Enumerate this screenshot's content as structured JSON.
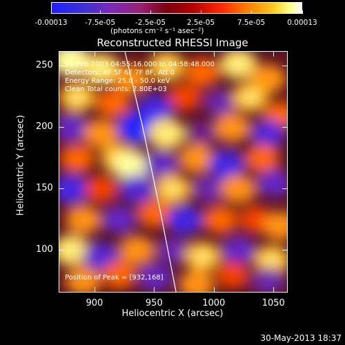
{
  "colorbar": {
    "ticks": [
      "-0.00013",
      "-7.5e-05",
      "-2.5e-05",
      "2.5e-05",
      "7.5e-05",
      "0.00013"
    ],
    "unit": "(photons cm⁻² s⁻¹ asec⁻²)",
    "range": [
      -0.00013,
      0.00013
    ]
  },
  "title": "Reconstructed RHESSI Image",
  "info": {
    "time": "21-Feb-2003 04:55:16.000 to 04:58:48.000",
    "detectors": "Detectors: 4F 5F 6F 7F 8F, Att 0",
    "energy": "Energy Range: 25.0 - 50.0 keV",
    "method": "Clean     Total counts: 2.80E+03",
    "peak": "Position of Peak = [932,168]"
  },
  "axes": {
    "xlabel": "Heliocentric X (arcsec)",
    "ylabel": "Heliocentric Y (arcsec)",
    "xticks": [
      "900",
      "950",
      "1000",
      "1050"
    ],
    "yticks": [
      "250",
      "200",
      "150",
      "100"
    ],
    "xlim": [
      870,
      1062
    ],
    "ylim": [
      65,
      262
    ]
  },
  "timestamp": "30-May-2013 18:37",
  "image": {
    "cmap": "red-temperature",
    "blobs": [
      [
        880,
        255,
        1.0
      ],
      [
        905,
        248,
        0.9
      ],
      [
        930,
        240,
        0.7
      ],
      [
        960,
        250,
        0.8
      ],
      [
        990,
        245,
        0.6
      ],
      [
        1020,
        252,
        0.9
      ],
      [
        1045,
        240,
        0.7
      ],
      [
        885,
        225,
        0.8
      ],
      [
        915,
        220,
        0.6
      ],
      [
        950,
        215,
        -0.8
      ],
      [
        975,
        225,
        0.5
      ],
      [
        1005,
        220,
        -0.5
      ],
      [
        1030,
        225,
        0.8
      ],
      [
        1055,
        210,
        0.6
      ],
      [
        880,
        200,
        -0.6
      ],
      [
        905,
        195,
        0.7
      ],
      [
        935,
        200,
        -1.0
      ],
      [
        960,
        195,
        0.9
      ],
      [
        990,
        195,
        -0.4
      ],
      [
        1015,
        200,
        0.7
      ],
      [
        1045,
        195,
        -0.7
      ],
      [
        885,
        175,
        0.6
      ],
      [
        920,
        175,
        0.8
      ],
      [
        932,
        168,
        1.0
      ],
      [
        955,
        170,
        -0.6
      ],
      [
        985,
        175,
        0.7
      ],
      [
        1010,
        170,
        -0.8
      ],
      [
        1040,
        175,
        0.6
      ],
      [
        880,
        150,
        -0.8
      ],
      [
        905,
        150,
        0.5
      ],
      [
        935,
        150,
        -0.7
      ],
      [
        965,
        150,
        0.8
      ],
      [
        995,
        150,
        -0.5
      ],
      [
        1020,
        150,
        0.7
      ],
      [
        1050,
        155,
        -0.6
      ],
      [
        890,
        125,
        0.7
      ],
      [
        920,
        125,
        -0.6
      ],
      [
        950,
        130,
        0.6
      ],
      [
        975,
        125,
        -0.8
      ],
      [
        1005,
        125,
        0.6
      ],
      [
        1035,
        125,
        0.5
      ],
      [
        1055,
        120,
        0.7
      ],
      [
        880,
        100,
        0.9
      ],
      [
        905,
        95,
        -0.7
      ],
      [
        935,
        100,
        0.7
      ],
      [
        965,
        100,
        -0.5
      ],
      [
        990,
        95,
        0.8
      ],
      [
        1020,
        100,
        -0.6
      ],
      [
        1048,
        92,
        0.8
      ],
      [
        890,
        75,
        0.7
      ],
      [
        920,
        80,
        0.6
      ],
      [
        950,
        78,
        -0.6
      ],
      [
        985,
        72,
        0.7
      ],
      [
        1015,
        80,
        0.5
      ],
      [
        1045,
        75,
        -0.5
      ]
    ]
  },
  "limb_line": {
    "x_points": [
      925,
      940,
      955,
      968
    ],
    "y_points": [
      262,
      200,
      130,
      65
    ]
  }
}
